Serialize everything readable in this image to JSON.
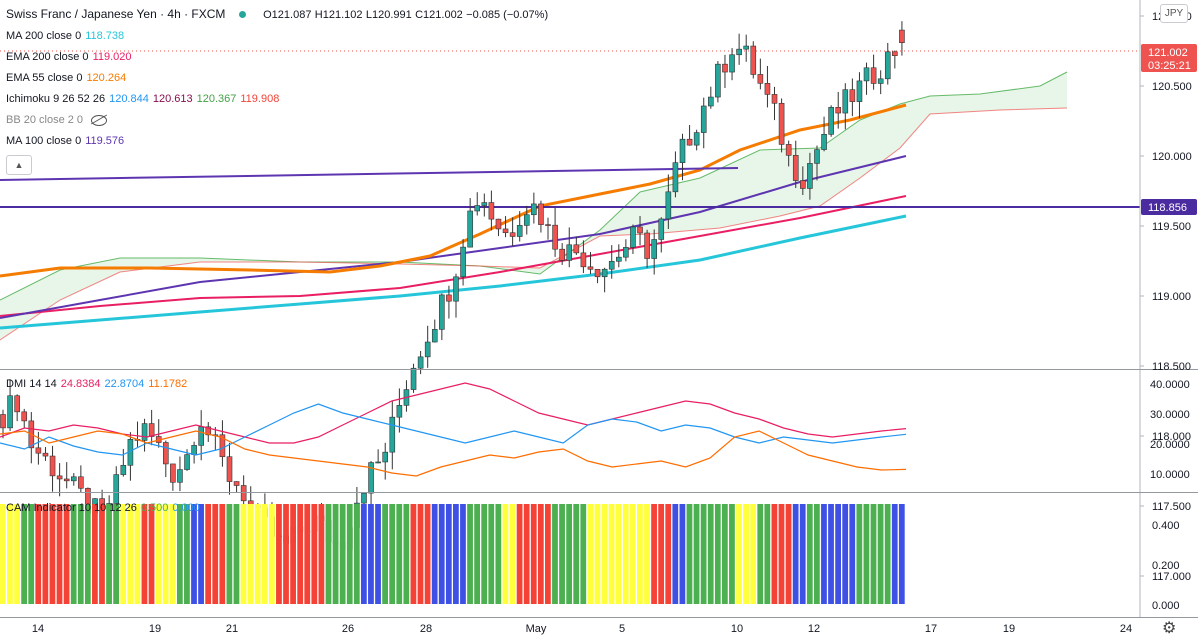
{
  "header": {
    "symbol": "Swiss Franc / Japanese Yen · 4h · FXCM",
    "open": "O121.087",
    "high": "H121.102",
    "low": "L120.991",
    "close": "C121.002",
    "change": "−0.085 (−0.07%)",
    "currency": "JPY"
  },
  "indicators": {
    "ma200": {
      "label": "MA 200 close 0",
      "value": "118.738",
      "color": "#26c6da"
    },
    "ema200": {
      "label": "EMA 200 close 0",
      "value": "119.020",
      "color": "#e91e63"
    },
    "ema55": {
      "label": "EMA 55 close 0",
      "value": "120.264",
      "color": "#f57c00"
    },
    "ichimoku": {
      "label": "Ichimoku 9 26 52 26",
      "v1": "120.844",
      "v2": "120.613",
      "v3": "120.367",
      "v4": "119.908",
      "c1": "#2196f3",
      "c2": "#880e4f",
      "c3": "#43a047",
      "c4": "#f44336"
    },
    "bb": {
      "label": "BB 20 close 2 0"
    },
    "ma100": {
      "label": "MA 100 close 0",
      "value": "119.576",
      "color": "#5e35b1"
    },
    "dmi": {
      "label": "DMI 14 14",
      "v1": "24.8384",
      "v2": "22.8704",
      "v3": "11.1782",
      "c1": "#e91e63",
      "c2": "#2196f3",
      "c3": "#ff6d00"
    },
    "cam": {
      "label": "CAM Indicator 10 10 12 26",
      "v1": "0.500",
      "v2": "0.000",
      "c1": "#4caf50",
      "c2": "#2196f3"
    }
  },
  "price_axis": {
    "ticks": [
      "121.000",
      "120.500",
      "120.000",
      "119.500",
      "119.000",
      "118.500",
      "118.000",
      "117.500",
      "117.000"
    ],
    "last_price": "121.002",
    "countdown": "03:25:21",
    "hline_price": "118.856"
  },
  "dmi_axis": {
    "ticks": [
      "40.0000",
      "30.0000",
      "20.0000",
      "10.0000"
    ]
  },
  "cam_axis": {
    "ticks": [
      "0.400",
      "0.200",
      "0.000"
    ]
  },
  "time_axis": {
    "ticks": [
      "14",
      "19",
      "21",
      "26",
      "28",
      "May",
      "5",
      "10",
      "12",
      "17",
      "19",
      "24"
    ]
  },
  "colors": {
    "up": "#26a69a",
    "down": "#ef5350",
    "hline": "#4a2ba0",
    "trend": "#5e35b1",
    "cloud": "#e8f5e9",
    "cam_green": "#4caf50",
    "cam_red": "#f44336",
    "cam_yellow": "#ffff3b",
    "cam_blue": "#3f51e5"
  },
  "chart_data": [
    {
      "type": "candlestick",
      "title": "Swiss Franc / Japanese Yen · 4h · FXCM",
      "ylim": [
        116.75,
        121.25
      ],
      "x_categories": [
        "14",
        "19",
        "21",
        "26",
        "28",
        "May",
        "5",
        "10",
        "12",
        "17",
        "19",
        "24"
      ],
      "last": {
        "open": 121.087,
        "high": 121.102,
        "low": 120.991,
        "close": 121.002
      },
      "close_path": [
        118.5,
        118.6,
        118.3,
        118.2,
        118.1,
        118.0,
        117.9,
        117.8,
        118.0,
        118.3,
        118.4,
        118.3,
        118.1,
        118.2,
        118.5,
        118.3,
        118.1,
        118.0,
        117.8,
        117.7,
        117.6,
        117.7,
        117.8,
        117.7,
        117.6,
        117.9,
        118.1,
        118.2,
        118.5,
        118.8,
        119.0,
        119.2,
        119.4,
        119.8,
        120.0,
        119.8,
        119.7,
        119.9,
        119.9,
        119.7,
        119.6,
        119.6,
        119.5,
        119.5,
        119.6,
        119.7,
        119.6,
        119.8,
        120.2,
        120.4,
        120.6,
        120.8,
        121.0,
        120.9,
        120.7,
        120.5,
        120.2,
        120.1,
        120.3,
        120.5,
        120.6,
        120.7,
        120.8,
        120.9,
        121.0
      ]
    },
    {
      "type": "line",
      "ylim": [
        8,
        42
      ],
      "series": [
        {
          "name": "DMI 14 14",
          "values": [
            22,
            25,
            24,
            26,
            25,
            23,
            22,
            24,
            26,
            24,
            22,
            20,
            20,
            22,
            26,
            30,
            34,
            36,
            38,
            40,
            38,
            34,
            30,
            28,
            26,
            28,
            30,
            32,
            34,
            33,
            30,
            28,
            25,
            23,
            22,
            23,
            24,
            24.8
          ]
        },
        {
          "name": "",
          "values": [
            20,
            18,
            22,
            19,
            17,
            16,
            20,
            18,
            16,
            18,
            22,
            26,
            30,
            33,
            30,
            28,
            26,
            24,
            22,
            20,
            22,
            24,
            22,
            20,
            26,
            28,
            27,
            24,
            26,
            25,
            22,
            20,
            22,
            21,
            20,
            21,
            22,
            22.9
          ]
        },
        {
          "name": "",
          "values": [
            23,
            24,
            20,
            22,
            24,
            23,
            20,
            22,
            24,
            22,
            18,
            16,
            15,
            14,
            13,
            12,
            10,
            9,
            12,
            14,
            16,
            15,
            17,
            18,
            14,
            12,
            13,
            14,
            12,
            15,
            22,
            24,
            20,
            16,
            14,
            12,
            11,
            11.2
          ]
        }
      ]
    },
    {
      "type": "bar",
      "ylim": [
        0,
        0.6
      ],
      "value": 0.5,
      "color_pattern": [
        "yellow",
        "green",
        "red",
        "red",
        "green",
        "red",
        "green",
        "yellow",
        "red",
        "yellow",
        "green",
        "blue",
        "red",
        "green",
        "yellow",
        "yellow",
        "red",
        "red",
        "red",
        "green",
        "green",
        "blue",
        "green",
        "green",
        "red",
        "blue",
        "blue",
        "green",
        "green",
        "yellow",
        "red",
        "red",
        "green",
        "green",
        "yellow",
        "yellow",
        "yellow",
        "yellow",
        "red",
        "blue",
        "green",
        "green",
        "green",
        "yellow",
        "green",
        "red",
        "blue",
        "green",
        "blue",
        "blue",
        "green",
        "green",
        "blue"
      ]
    }
  ]
}
